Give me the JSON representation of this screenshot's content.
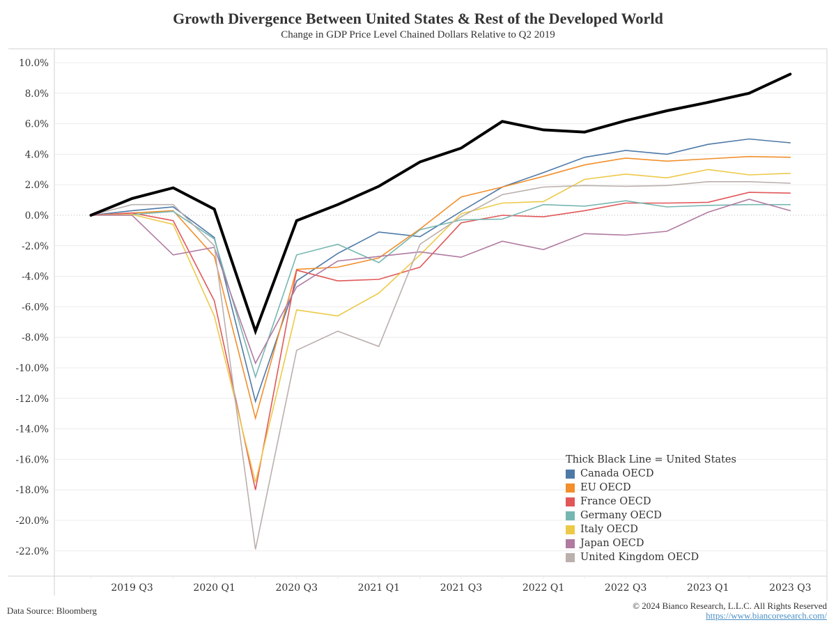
{
  "chart_data": {
    "type": "line",
    "title": "Growth Divergence Between United States & Rest of the Developed World",
    "subtitle": "Change in GDP Price Level Chained Dollars Relative to Q2 2019",
    "xlabel": "",
    "ylabel": "",
    "ylim": [
      -23,
      11
    ],
    "grid": true,
    "legend_position": "bottom-right",
    "x": [
      "2019 Q2",
      "2019 Q3",
      "2019 Q4",
      "2020 Q1",
      "2020 Q2",
      "2020 Q3",
      "2020 Q4",
      "2021 Q1",
      "2021 Q2",
      "2021 Q3",
      "2021 Q4",
      "2022 Q1",
      "2022 Q2",
      "2022 Q3",
      "2022 Q4",
      "2023 Q1",
      "2023 Q2",
      "2023 Q3"
    ],
    "x_tick_labels": [
      "2019 Q3",
      "2020 Q1",
      "2020 Q3",
      "2021 Q1",
      "2021 Q3",
      "2022 Q1",
      "2022 Q3",
      "2023 Q1",
      "2023 Q3"
    ],
    "y_ticks": [
      10,
      8,
      6,
      4,
      2,
      0,
      -2,
      -4,
      -6,
      -8,
      -10,
      -12,
      -14,
      -16,
      -18,
      -20,
      -22
    ],
    "y_tick_format": "{v}.0%",
    "series": [
      {
        "name": "Canada OECD",
        "color": "#4e79a7",
        "values": [
          0,
          0.3,
          0.55,
          -1.45,
          -12.2,
          -4.3,
          -2.5,
          -1.1,
          -1.4,
          0.25,
          1.85,
          2.8,
          3.8,
          4.25,
          4.0,
          4.65,
          5.0,
          4.75
        ]
      },
      {
        "name": "EU OECD",
        "color": "#f28e2b",
        "values": [
          0,
          0.15,
          0.3,
          -2.7,
          -13.3,
          -3.55,
          -3.4,
          -2.8,
          -0.9,
          1.2,
          1.85,
          2.55,
          3.3,
          3.75,
          3.55,
          3.7,
          3.85,
          3.8
        ]
      },
      {
        "name": "France OECD",
        "color": "#e15759",
        "values": [
          0,
          0.15,
          -0.35,
          -5.6,
          -18.0,
          -3.6,
          -4.3,
          -4.2,
          -3.4,
          -0.5,
          0.0,
          -0.1,
          0.3,
          0.8,
          0.8,
          0.85,
          1.5,
          1.45
        ]
      },
      {
        "name": "Germany OECD",
        "color": "#76b7b2",
        "values": [
          0,
          0.05,
          0.25,
          -1.55,
          -10.6,
          -2.6,
          -1.9,
          -3.1,
          -0.95,
          -0.3,
          -0.25,
          0.7,
          0.6,
          0.95,
          0.55,
          0.65,
          0.7,
          0.7
        ]
      },
      {
        "name": "Italy OECD",
        "color": "#edc948",
        "values": [
          0,
          0.05,
          -0.6,
          -6.6,
          -17.5,
          -6.2,
          -6.6,
          -5.1,
          -2.6,
          0.1,
          0.8,
          0.9,
          2.35,
          2.7,
          2.45,
          3.0,
          2.65,
          2.75
        ]
      },
      {
        "name": "Japan OECD",
        "color": "#b07aa1",
        "values": [
          0,
          0.0,
          -2.6,
          -2.1,
          -9.7,
          -4.7,
          -3.0,
          -2.7,
          -2.4,
          -2.75,
          -1.7,
          -2.25,
          -1.2,
          -1.3,
          -1.05,
          0.2,
          1.05,
          0.3
        ]
      },
      {
        "name": "United Kingdom OECD",
        "color": "#bab0ac",
        "values": [
          0,
          0.7,
          0.7,
          -2.0,
          -21.9,
          -8.85,
          -7.6,
          -8.6,
          -1.9,
          -0.1,
          1.35,
          1.85,
          1.95,
          1.9,
          1.95,
          2.2,
          2.2,
          2.1
        ]
      },
      {
        "name": "United States",
        "color": "#000000",
        "thick": true,
        "values": [
          0,
          1.1,
          1.8,
          0.4,
          -7.6,
          -0.35,
          0.7,
          1.9,
          3.5,
          4.4,
          6.15,
          5.6,
          5.45,
          6.2,
          6.85,
          7.4,
          8.0,
          9.25
        ]
      }
    ]
  },
  "legend": {
    "title": "Thick Black Line = United States",
    "items": [
      {
        "label": "Canada OECD",
        "color": "#4e79a7"
      },
      {
        "label": "EU OECD",
        "color": "#f28e2b"
      },
      {
        "label": "France OECD",
        "color": "#e15759"
      },
      {
        "label": "Germany OECD",
        "color": "#76b7b2"
      },
      {
        "label": "Italy OECD",
        "color": "#edc948"
      },
      {
        "label": "Japan OECD",
        "color": "#b07aa1"
      },
      {
        "label": "United Kingdom OECD",
        "color": "#bab0ac"
      }
    ]
  },
  "footer": {
    "source": "Data Source: Bloomberg",
    "copyright": "© 2024 Bianco Research, L.L.C. All Rights Reserved",
    "url": "https://www.biancoresearch.com/"
  }
}
